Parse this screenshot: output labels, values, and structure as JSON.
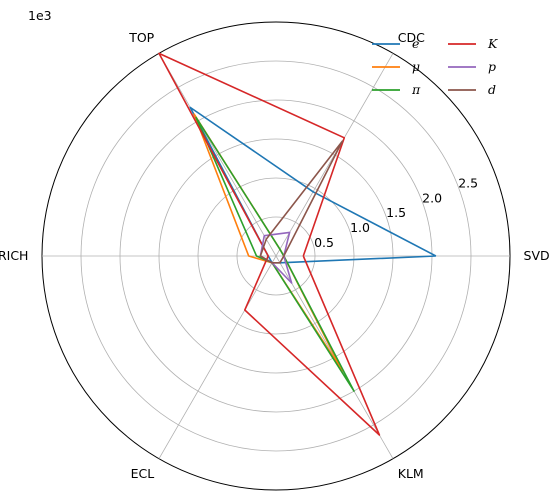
{
  "chart_data": {
    "type": "radar",
    "title": "",
    "multiplier_label": "1e3",
    "axes": [
      "SVD",
      "CDC",
      "TOP",
      "ARICH",
      "ECL",
      "KLM"
    ],
    "rlim": [
      0,
      3
    ],
    "rticks": [
      0.5,
      1.0,
      1.5,
      2.0,
      2.5
    ],
    "rtick_labels": [
      "0.5",
      "1.0",
      "1.5",
      "2.0",
      "2.5"
    ],
    "grid": true,
    "legend_position": "top-right",
    "series": [
      {
        "name": "e",
        "color": "#1f77b4",
        "values": [
          2.05,
          0.95,
          2.2,
          0.1,
          0.1,
          0.1
        ]
      },
      {
        "name": "μ",
        "color": "#ff7f0e",
        "values": [
          0.1,
          0.1,
          2.1,
          0.35,
          0.1,
          1.7
        ]
      },
      {
        "name": "π",
        "color": "#2ca02c",
        "values": [
          0.1,
          0.1,
          2.05,
          0.25,
          0.1,
          2.0
        ]
      },
      {
        "name": "K",
        "color": "#d62728",
        "values": [
          0.35,
          1.75,
          3.0,
          0.1,
          0.8,
          2.65
        ]
      },
      {
        "name": "p",
        "color": "#9467bd",
        "values": [
          0.1,
          0.35,
          0.3,
          0.2,
          0.1,
          0.4
        ]
      },
      {
        "name": "d",
        "color": "#8c564b",
        "values": [
          0.1,
          1.7,
          0.25,
          0.2,
          0.1,
          0.1
        ]
      }
    ]
  }
}
